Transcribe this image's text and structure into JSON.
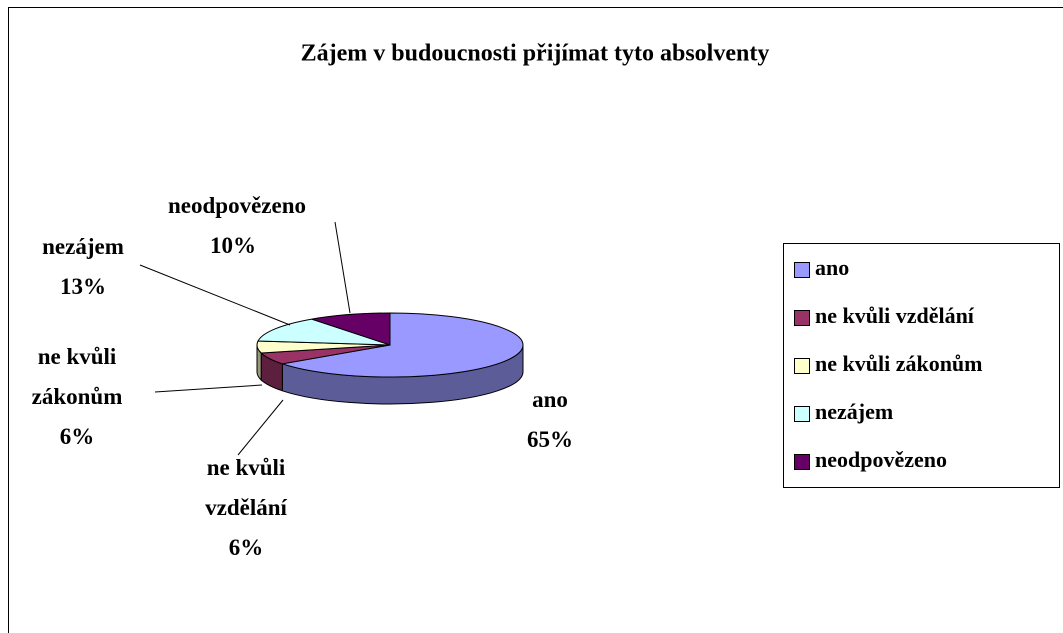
{
  "chart_data": {
    "type": "pie",
    "title": "Zájem v budoucnosti přijímat tyto absolventy",
    "categories": [
      "ano",
      "ne kvůli vzdělání",
      "ne kvůli zákonům",
      "nezájem",
      "neodpovězeno"
    ],
    "values": [
      65,
      6,
      6,
      13,
      10
    ],
    "value_labels": [
      "65%",
      "6%",
      "6%",
      "13%",
      "10%"
    ],
    "colors": [
      "#9999ff",
      "#993366",
      "#ffffcc",
      "#ccffff",
      "#660066"
    ],
    "legend": "right"
  }
}
